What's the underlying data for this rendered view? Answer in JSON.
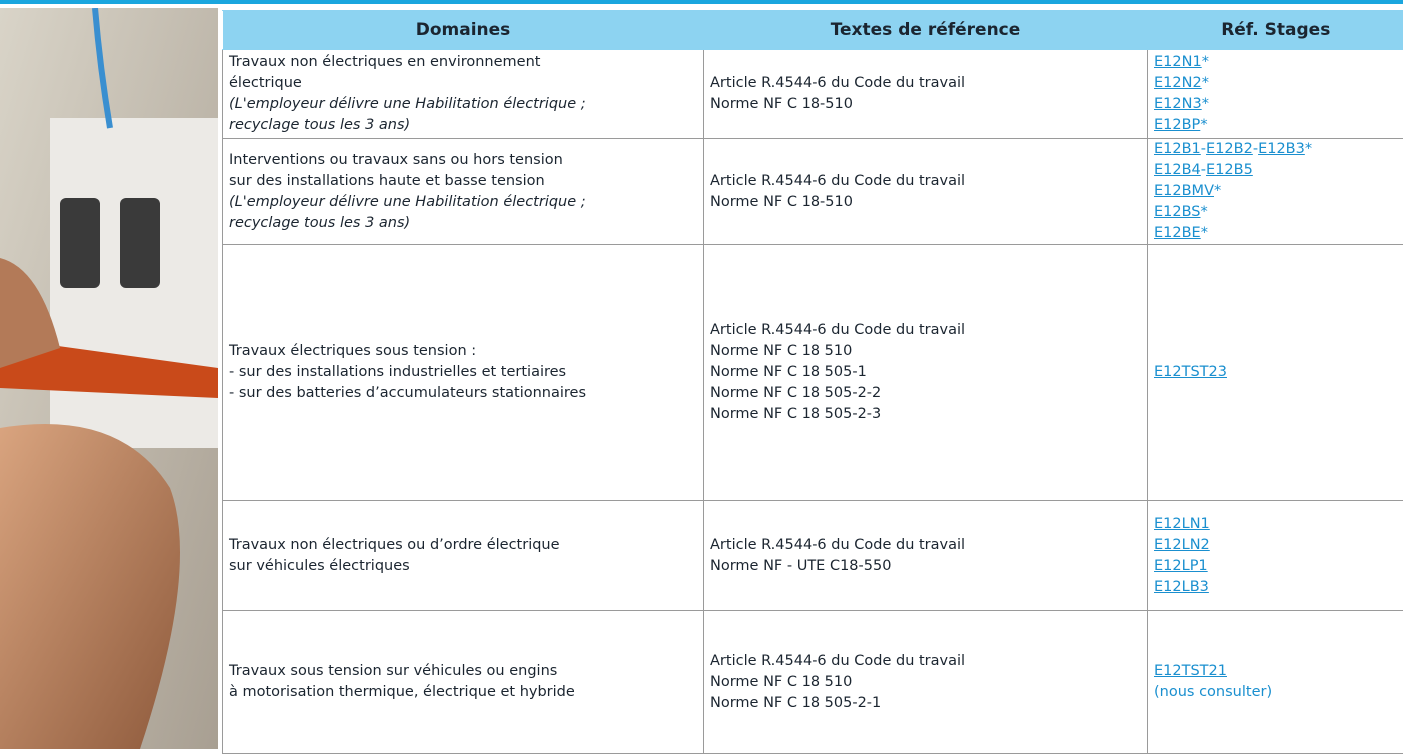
{
  "table": {
    "columns": [
      "Domaines",
      "Textes de référence",
      "Réf. Stages"
    ],
    "rows": [
      {
        "title_lines": [
          "Travaux non électriques en environnement",
          "électrique"
        ],
        "note_lines": [
          "(L'employeur délivre une Habilitation électrique ;",
          "recyclage tous les 3 ans)"
        ],
        "texts": [
          "Article R.4544-6 du Code du travail",
          "Norme NF C 18-510"
        ],
        "refs": [
          [
            {
              "link": "E12N1"
            },
            {
              "text": "*"
            }
          ],
          [
            {
              "link": "E12N2"
            },
            {
              "text": "*"
            }
          ],
          [
            {
              "link": "E12N3"
            },
            {
              "text": "*"
            }
          ],
          [
            {
              "link": "E12BP"
            },
            {
              "text": "*"
            }
          ]
        ]
      },
      {
        "title_lines": [
          "Interventions ou travaux sans ou hors tension",
          "sur des installations haute et basse tension"
        ],
        "note_lines": [
          "(L'employeur délivre une Habilitation électrique ;",
          "recyclage tous les 3 ans)"
        ],
        "texts": [
          "Article R.4544-6 du Code du travail",
          "Norme NF C 18-510"
        ],
        "refs": [
          [
            {
              "link": "E12B1"
            },
            {
              "text": "-"
            },
            {
              "link": "E12B2"
            },
            {
              "text": "-"
            },
            {
              "link": "E12B3"
            },
            {
              "text": "*"
            }
          ],
          [
            {
              "link": "E12B4"
            },
            {
              "text": "-"
            },
            {
              "link": "E12B5"
            }
          ],
          [
            {
              "link": "E12BMV"
            },
            {
              "text": "*"
            }
          ],
          [
            {
              "link": "E12BS"
            },
            {
              "text": "*"
            }
          ],
          [
            {
              "link": "E12BE"
            },
            {
              "text": "*"
            }
          ]
        ]
      },
      {
        "title_lines": [
          "Travaux électriques sous tension :",
          "- sur des installations industrielles et tertiaires",
          "- sur des batteries d’accumulateurs stationnaires"
        ],
        "note_lines": [],
        "texts": [
          "Article R.4544-6 du Code du travail",
          "Norme NF C 18 510",
          "Norme NF C 18 505-1",
          "Norme NF C 18 505-2-2",
          "Norme NF C 18 505-2-3"
        ],
        "refs": [
          [
            {
              "link": "E12TST23"
            }
          ]
        ]
      },
      {
        "title_lines": [
          "Travaux non électriques ou d’ordre électrique",
          "sur véhicules électriques"
        ],
        "note_lines": [],
        "texts": [
          "Article R.4544-6 du Code du travail",
          "Norme NF - UTE C18-550"
        ],
        "refs": [
          [
            {
              "link": "E12LN1"
            }
          ],
          [
            {
              "link": "E12LN2"
            }
          ],
          [
            {
              "link": "E12LP1"
            }
          ],
          [
            {
              "link": "E12LB3"
            }
          ]
        ]
      },
      {
        "title_lines": [
          "Travaux sous tension sur véhicules ou engins",
          "à motorisation thermique, électrique et hybride"
        ],
        "note_lines": [],
        "texts": [
          "Article R.4544-6 du Code du travail",
          "Norme NF C 18 510",
          "Norme NF C 18 505-2-1"
        ],
        "refs": [
          [
            {
              "link": "E12TST21"
            }
          ],
          [
            {
              "text": "(nous consulter)"
            }
          ]
        ]
      }
    ]
  }
}
